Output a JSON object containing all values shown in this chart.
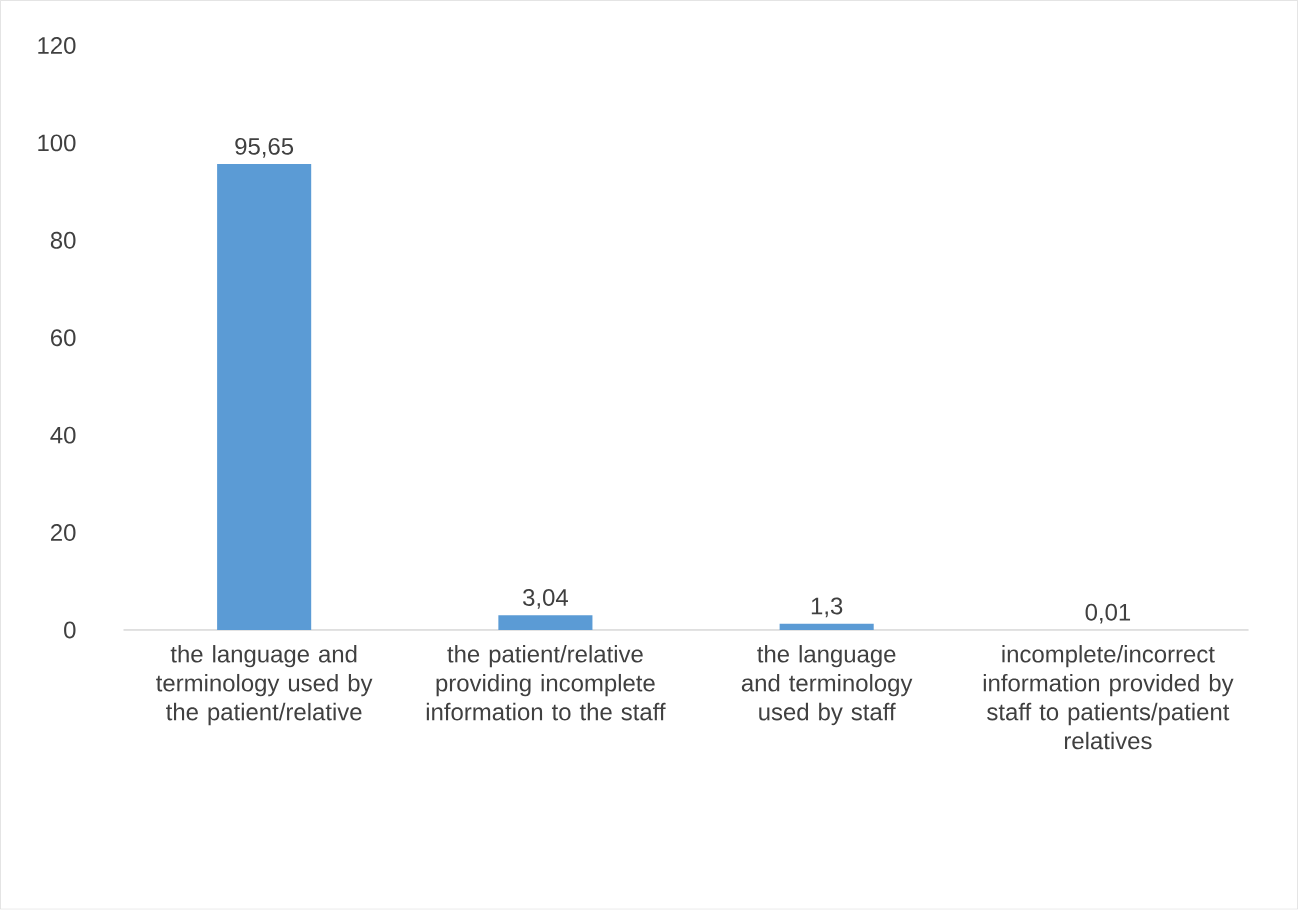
{
  "chart_data": {
    "type": "bar",
    "categories": [
      "the language and terminology used by the patient/relative",
      "the patient/relative providing incomplete information to the staff",
      "the language and terminology used by staff",
      "incomplete/incorrect information provided by staff to patients/patient relatives"
    ],
    "values": [
      95.65,
      3.04,
      1.3,
      0.01
    ],
    "value_labels": [
      "95,65",
      "3,04",
      "1,3",
      "0,01"
    ],
    "color": "#5b9bd5",
    "ylim": [
      0,
      120
    ],
    "yticks": [
      0,
      20,
      40,
      60,
      80,
      100,
      120
    ]
  }
}
